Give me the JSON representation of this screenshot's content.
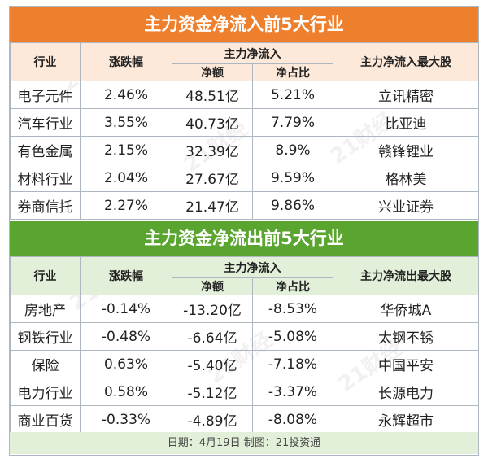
{
  "inflow": {
    "title": "主力资金净流入前5大行业",
    "headers": {
      "industry": "行业",
      "change": "涨跌幅",
      "net_flow": "主力净流入",
      "net_amount": "净额",
      "net_ratio": "净占比",
      "top_stock": "主力净流入最大股"
    },
    "rows": [
      {
        "industry": "电子元件",
        "change": "2.46%",
        "amount": "48.51亿",
        "ratio": "5.21%",
        "stock": "立讯精密"
      },
      {
        "industry": "汽车行业",
        "change": "3.55%",
        "amount": "40.73亿",
        "ratio": "7.79%",
        "stock": "比亚迪"
      },
      {
        "industry": "有色金属",
        "change": "2.15%",
        "amount": "32.39亿",
        "ratio": "8.9%",
        "stock": "赣锋锂业"
      },
      {
        "industry": "材料行业",
        "change": "2.04%",
        "amount": "27.67亿",
        "ratio": "9.59%",
        "stock": "格林美"
      },
      {
        "industry": "券商信托",
        "change": "2.27%",
        "amount": "21.47亿",
        "ratio": "9.86%",
        "stock": "兴业证券"
      }
    ]
  },
  "outflow": {
    "title": "主力资金净流出前5大行业",
    "headers": {
      "industry": "行业",
      "change": "涨跌幅",
      "net_flow": "主力净流入",
      "net_amount": "净额",
      "net_ratio": "净占比",
      "top_stock": "主力净流出最大股"
    },
    "rows": [
      {
        "industry": "房地产",
        "change": "-0.14%",
        "amount": "-13.20亿",
        "ratio": "-8.53%",
        "stock": "华侨城A"
      },
      {
        "industry": "钢铁行业",
        "change": "-0.48%",
        "amount": "-6.64亿",
        "ratio": "-5.08%",
        "stock": "太钢不锈"
      },
      {
        "industry": "保险",
        "change": "0.63%",
        "amount": "-5.40亿",
        "ratio": "-7.18%",
        "stock": "中国平安"
      },
      {
        "industry": "电力行业",
        "change": "0.58%",
        "amount": "-5.12亿",
        "ratio": "-3.37%",
        "stock": "长源电力"
      },
      {
        "industry": "商业百货",
        "change": "-0.33%",
        "amount": "-4.89亿",
        "ratio": "-8.08%",
        "stock": "永辉超市"
      }
    ]
  },
  "footer": "日期：4月19日 制图：21投资通",
  "watermark": "21财经",
  "colors": {
    "orange_banner": "#ee7f2d",
    "orange_header": "#fde9d9",
    "green_banner": "#5aa52f",
    "green_header": "#e2efd9",
    "grid": "#aeb7c0"
  }
}
